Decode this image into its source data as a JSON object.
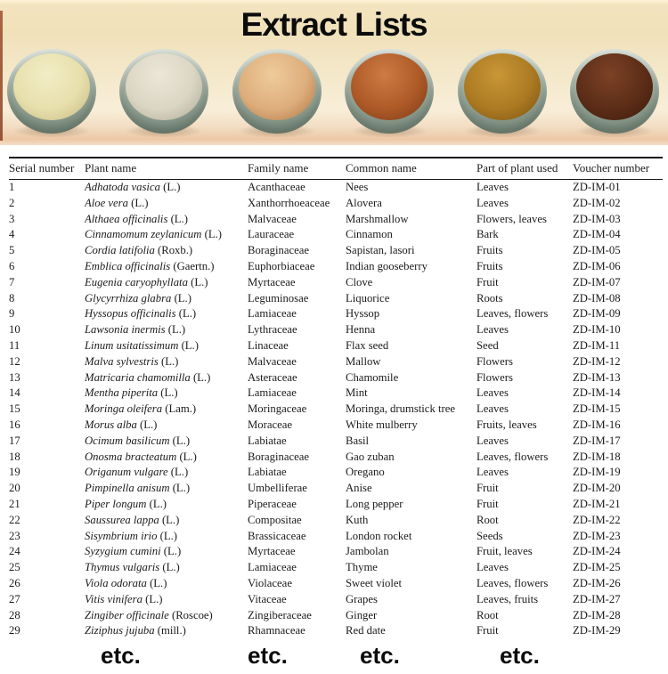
{
  "title": "Extract Lists",
  "photo": {
    "bowls": [
      {
        "name": "pale-yellow-powder",
        "light": "#f2edc6",
        "base": "#e7dfac",
        "dark": "#c9bd87"
      },
      {
        "name": "off-white-powder",
        "light": "#ebe7d9",
        "base": "#dbd6c3",
        "dark": "#b2ad9b"
      },
      {
        "name": "light-tan-powder",
        "light": "#eecb9c",
        "base": "#deae7c",
        "dark": "#b07c48"
      },
      {
        "name": "terracotta-powder",
        "light": "#cd7c44",
        "base": "#ae5a28",
        "dark": "#7e3d18"
      },
      {
        "name": "golden-ochre-powder",
        "light": "#c99736",
        "base": "#ac7a22",
        "dark": "#7f5714"
      },
      {
        "name": "dark-brown-powder",
        "light": "#7c4226",
        "base": "#5c2d17",
        "dark": "#3f1d0c"
      }
    ]
  },
  "table": {
    "headers": [
      "Serial number",
      "Plant name",
      "Family name",
      "Common name",
      "Part of plant used",
      "Voucher number"
    ],
    "rows": [
      {
        "serial": "1",
        "plant": "Adhatoda vasica",
        "authority": "(L.)",
        "family": "Acanthaceae",
        "common": "Nees",
        "part": "Leaves",
        "voucher": "ZD-IM-01"
      },
      {
        "serial": "2",
        "plant": "Aloe vera",
        "authority": "(L.)",
        "family": "Xanthorrhoeaceae",
        "common": "Alovera",
        "part": "Leaves",
        "voucher": "ZD-IM-02"
      },
      {
        "serial": "3",
        "plant": "Althaea officinalis",
        "authority": "(L.)",
        "family": "Malvaceae",
        "common": "Marshmallow",
        "part": "Flowers, leaves",
        "voucher": "ZD-IM-03"
      },
      {
        "serial": "4",
        "plant": "Cinnamomum zeylanicum",
        "authority": "(L.)",
        "family": "Lauraceae",
        "common": "Cinnamon",
        "part": "Bark",
        "voucher": "ZD-IM-04"
      },
      {
        "serial": "5",
        "plant": "Cordia latifolia",
        "authority": "(Roxb.)",
        "family": "Boraginaceae",
        "common": "Sapistan, lasori",
        "part": "Fruits",
        "voucher": "ZD-IM-05"
      },
      {
        "serial": "6",
        "plant": "Emblica officinalis",
        "authority": "(Gaertn.)",
        "family": "Euphorbiaceae",
        "common": "Indian gooseberry",
        "part": "Fruits",
        "voucher": "ZD-IM-06"
      },
      {
        "serial": "7",
        "plant": "Eugenia caryophyllata",
        "authority": "(L.)",
        "family": "Myrtaceae",
        "common": "Clove",
        "part": "Fruit",
        "voucher": "ZD-IM-07"
      },
      {
        "serial": "8",
        "plant": "Glycyrrhiza glabra",
        "authority": "(L.)",
        "family": "Leguminosae",
        "common": "Liquorice",
        "part": "Roots",
        "voucher": "ZD-IM-08"
      },
      {
        "serial": "9",
        "plant": "Hyssopus officinalis",
        "authority": "(L.)",
        "family": "Lamiaceae",
        "common": "Hyssop",
        "part": "Leaves, flowers",
        "voucher": "ZD-IM-09"
      },
      {
        "serial": "10",
        "plant": "Lawsonia inermis",
        "authority": "(L.)",
        "family": "Lythraceae",
        "common": "Henna",
        "part": "Leaves",
        "voucher": "ZD-IM-10"
      },
      {
        "serial": "11",
        "plant": "Linum usitatissimum",
        "authority": "(L.)",
        "family": "Linaceae",
        "common": "Flax seed",
        "part": "Seed",
        "voucher": "ZD-IM-11"
      },
      {
        "serial": "12",
        "plant": "Malva sylvestris",
        "authority": "(L.)",
        "family": "Malvaceae",
        "common": "Mallow",
        "part": "Flowers",
        "voucher": "ZD-IM-12"
      },
      {
        "serial": "13",
        "plant": "Matricaria chamomilla",
        "authority": "(L.)",
        "family": "Asteraceae",
        "common": "Chamomile",
        "part": "Flowers",
        "voucher": "ZD-IM-13"
      },
      {
        "serial": "14",
        "plant": "Mentha piperita",
        "authority": "(L.)",
        "family": "Lamiaceae",
        "common": "Mint",
        "part": "Leaves",
        "voucher": "ZD-IM-14"
      },
      {
        "serial": "15",
        "plant": "Moringa oleifera",
        "authority": "(Lam.)",
        "family": "Moringaceae",
        "common": "Moringa, drumstick tree",
        "part": "Leaves",
        "voucher": "ZD-IM-15"
      },
      {
        "serial": "16",
        "plant": "Morus alba",
        "authority": "(L.)",
        "family": "Moraceae",
        "common": "White mulberry",
        "part": "Fruits, leaves",
        "voucher": "ZD-IM-16"
      },
      {
        "serial": "17",
        "plant": "Ocimum basilicum",
        "authority": "(L.)",
        "family": "Labiatae",
        "common": "Basil",
        "part": "Leaves",
        "voucher": "ZD-IM-17"
      },
      {
        "serial": "18",
        "plant": "Onosma bracteatum",
        "authority": "(L.)",
        "family": "Boraginaceae",
        "common": "Gao zuban",
        "part": "Leaves, flowers",
        "voucher": "ZD-IM-18"
      },
      {
        "serial": "19",
        "plant": "Origanum vulgare",
        "authority": "(L.)",
        "family": "Labiatae",
        "common": "Oregano",
        "part": "Leaves",
        "voucher": "ZD-IM-19"
      },
      {
        "serial": "20",
        "plant": "Pimpinella anisum",
        "authority": "(L.)",
        "family": "Umbelliferae",
        "common": "Anise",
        "part": "Fruit",
        "voucher": "ZD-IM-20"
      },
      {
        "serial": "21",
        "plant": "Piper longum",
        "authority": "(L.)",
        "family": "Piperaceae",
        "common": "Long pepper",
        "part": "Fruit",
        "voucher": "ZD-IM-21"
      },
      {
        "serial": "22",
        "plant": "Saussurea lappa",
        "authority": "(L.)",
        "family": "Compositae",
        "common": "Kuth",
        "part": "Root",
        "voucher": "ZD-IM-22"
      },
      {
        "serial": "23",
        "plant": "Sisymbrium irio",
        "authority": "(L.)",
        "family": "Brassicaceae",
        "common": "London rocket",
        "part": "Seeds",
        "voucher": "ZD-IM-23"
      },
      {
        "serial": "24",
        "plant": "Syzygium cumini",
        "authority": "(L.)",
        "family": "Myrtaceae",
        "common": "Jambolan",
        "part": "Fruit, leaves",
        "voucher": "ZD-IM-24"
      },
      {
        "serial": "25",
        "plant": "Thymus vulgaris",
        "authority": "(L.)",
        "family": "Lamiaceae",
        "common": "Thyme",
        "part": "Leaves",
        "voucher": "ZD-IM-25"
      },
      {
        "serial": "26",
        "plant": "Viola odorata",
        "authority": "(L.)",
        "family": "Violaceae",
        "common": "Sweet violet",
        "part": "Leaves, flowers",
        "voucher": "ZD-IM-26"
      },
      {
        "serial": "27",
        "plant": "Vitis vinifera",
        "authority": "(L.)",
        "family": "Vitaceae",
        "common": "Grapes",
        "part": "Leaves, fruits",
        "voucher": "ZD-IM-27"
      },
      {
        "serial": "28",
        "plant": "Zingiber officinale",
        "authority": "(Roscoe)",
        "family": "Zingiberaceae",
        "common": "Ginger",
        "part": "Root",
        "voucher": "ZD-IM-28"
      },
      {
        "serial": "29",
        "plant": "Ziziphus jujuba",
        "authority": "(mill.)",
        "family": "Rhamnaceae",
        "common": "Red date",
        "part": "Fruit",
        "voucher": "ZD-IM-29"
      }
    ],
    "etc_labels": [
      "etc.",
      "etc.",
      "etc.",
      "etc."
    ]
  }
}
